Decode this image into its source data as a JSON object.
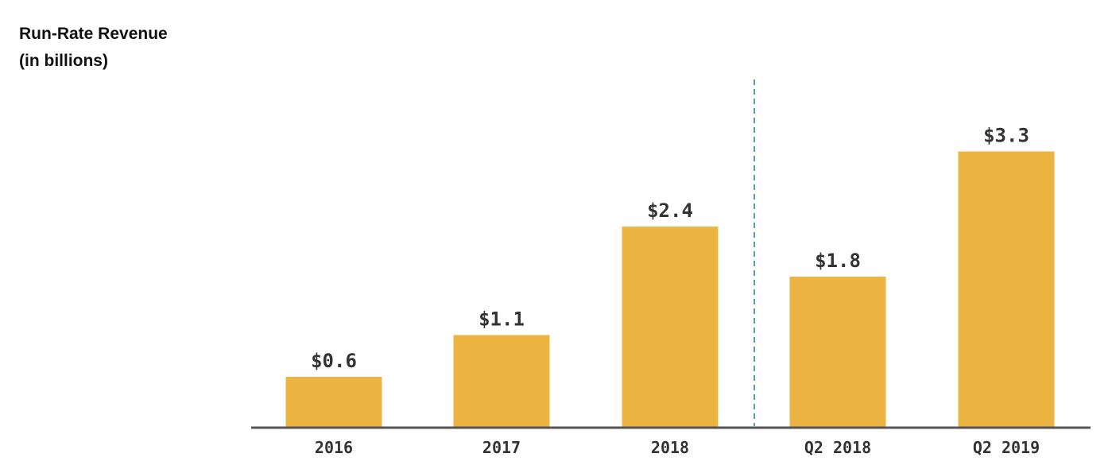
{
  "chart_data": {
    "type": "bar",
    "title": "Run-Rate Revenue",
    "subtitle": "(in billions)",
    "categories": [
      "2016",
      "2017",
      "2018",
      "Q2 2018",
      "Q2 2019"
    ],
    "values": [
      0.6,
      1.1,
      2.4,
      1.8,
      3.3
    ],
    "data_labels": [
      "$0.6",
      "$1.1",
      "$2.4",
      "$1.8",
      "$3.3"
    ],
    "divider_after_category": "2018",
    "ylim": [
      0,
      4
    ],
    "grid": false,
    "legend": "none",
    "colors": {
      "bar": "#ECB541",
      "axis": "#555555",
      "divider": "#5aa0b4",
      "text": "#333333"
    }
  }
}
